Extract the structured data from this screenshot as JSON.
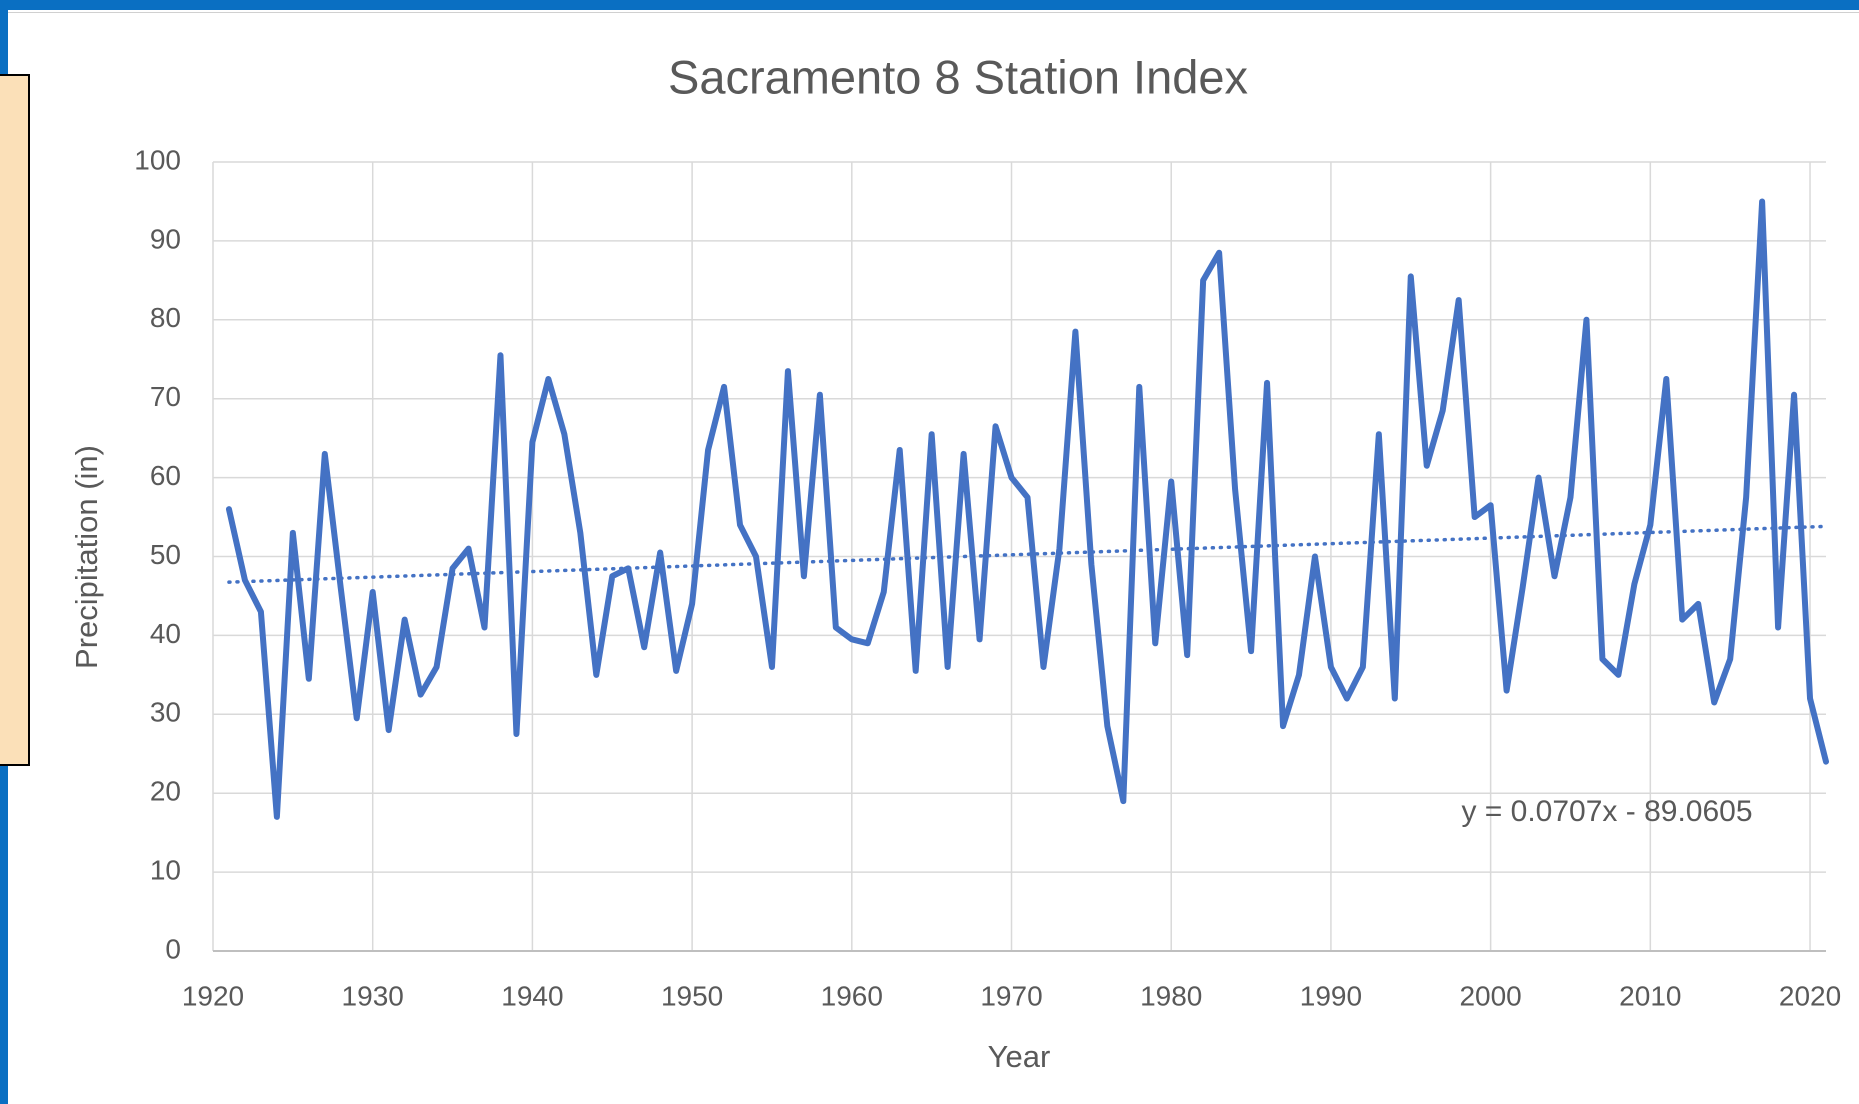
{
  "chart_data": {
    "type": "line",
    "title": "Sacramento 8 Station Index",
    "x_label": "Year",
    "y_label": "Precipitation (in)",
    "color": "#4472c4",
    "x": [
      1921,
      1922,
      1923,
      1924,
      1925,
      1926,
      1927,
      1928,
      1929,
      1930,
      1931,
      1932,
      1933,
      1934,
      1935,
      1936,
      1937,
      1938,
      1939,
      1940,
      1941,
      1942,
      1943,
      1944,
      1945,
      1946,
      1947,
      1948,
      1949,
      1950,
      1951,
      1952,
      1953,
      1954,
      1955,
      1956,
      1957,
      1958,
      1959,
      1960,
      1961,
      1962,
      1963,
      1964,
      1965,
      1966,
      1967,
      1968,
      1969,
      1970,
      1971,
      1972,
      1973,
      1974,
      1975,
      1976,
      1977,
      1978,
      1979,
      1980,
      1981,
      1982,
      1983,
      1984,
      1985,
      1986,
      1987,
      1988,
      1989,
      1990,
      1991,
      1992,
      1993,
      1994,
      1995,
      1996,
      1997,
      1998,
      1999,
      2000,
      2001,
      2002,
      2003,
      2004,
      2005,
      2006,
      2007,
      2008,
      2009,
      2010,
      2011,
      2012,
      2013,
      2014,
      2015,
      2016,
      2017,
      2018,
      2019,
      2020,
      2021
    ],
    "values": [
      56,
      47,
      43,
      17,
      53,
      34.5,
      63,
      46,
      29.5,
      45.5,
      28,
      42,
      32.5,
      36,
      48.5,
      51,
      41,
      75.5,
      27.5,
      64.5,
      72.5,
      65.5,
      53,
      35,
      47.5,
      48.5,
      38.5,
      50.5,
      35.5,
      44,
      63.5,
      71.5,
      54,
      50,
      36,
      73.5,
      47.5,
      70.5,
      41,
      39.5,
      39,
      45.5,
      63.5,
      35.5,
      65.5,
      36,
      63,
      39.5,
      66.5,
      60,
      57.5,
      36,
      51,
      78.5,
      49,
      28.5,
      19,
      71.5,
      39,
      59.5,
      37.5,
      85,
      88.5,
      58.5,
      38,
      72,
      28.5,
      35,
      50,
      36,
      32,
      36,
      65.5,
      32,
      85.5,
      61.5,
      68.5,
      82.5,
      55,
      56.5,
      33,
      46,
      60,
      47.5,
      57.5,
      80,
      37,
      35,
      46.5,
      54,
      72.5,
      42,
      44,
      31.5,
      37,
      57.5,
      95,
      41,
      70.5,
      32,
      24
    ],
    "trendline": {
      "x": [
        1921,
        2021
      ],
      "values": [
        46.75,
        53.82
      ],
      "label": "y = 0.0707x - 89.0605"
    },
    "xlim": [
      1920,
      2021
    ],
    "xticks": [
      1920,
      1930,
      1940,
      1950,
      1960,
      1970,
      1980,
      1990,
      2000,
      2010,
      2020
    ],
    "ylim": [
      0,
      100
    ],
    "yticks": [
      0,
      10,
      20,
      30,
      40,
      50,
      60,
      70,
      80,
      90,
      100
    ],
    "grid": true
  }
}
